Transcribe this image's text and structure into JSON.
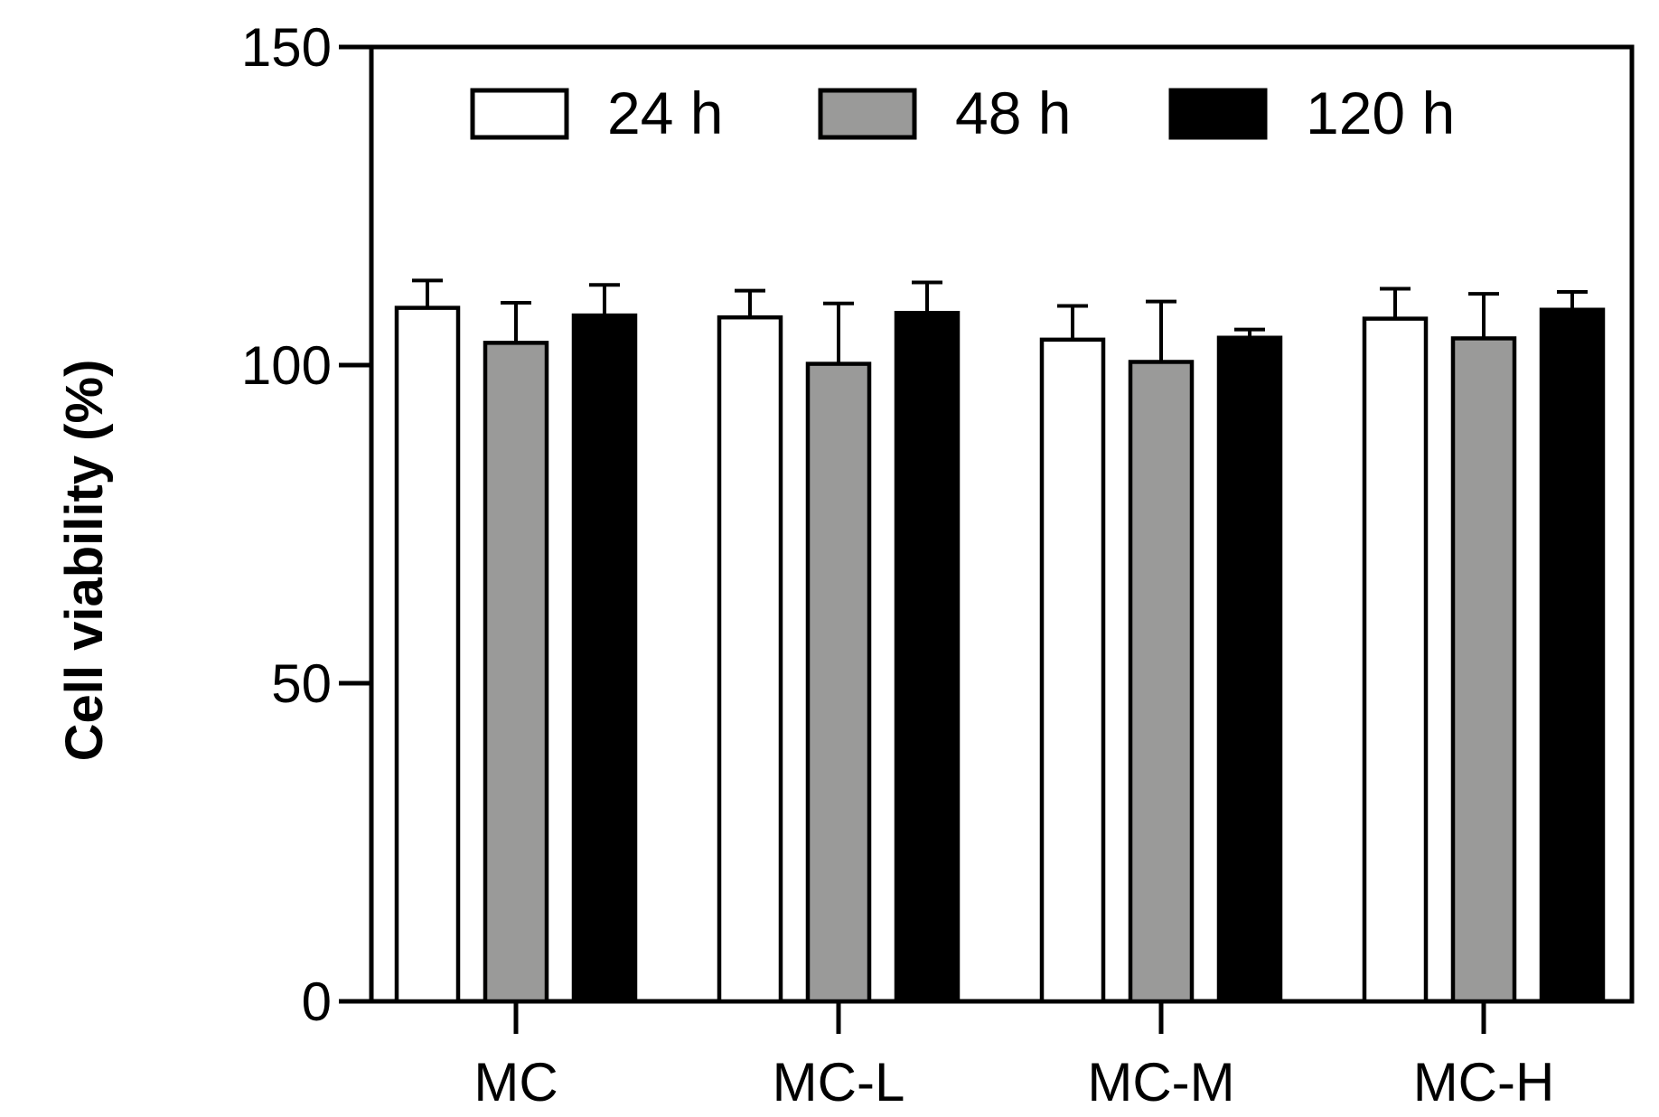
{
  "chart_data": {
    "type": "bar",
    "title": "",
    "xlabel": "",
    "ylabel": "Cell viability (%)",
    "ylim": [
      0,
      150
    ],
    "yticks": [
      0,
      50,
      100,
      150
    ],
    "grid": false,
    "legend_position": "top",
    "categories": [
      "MC",
      "MC-L",
      "MC-M",
      "MC-H"
    ],
    "series": [
      {
        "name": "24 h",
        "color": "#ffffff",
        "values": [
          109,
          107.5,
          104,
          107.3
        ],
        "errors": [
          4.3,
          4.2,
          5.3,
          4.7
        ]
      },
      {
        "name": "48 h",
        "color": "#9a9a99",
        "values": [
          103.5,
          100.2,
          100.5,
          104.2
        ],
        "errors": [
          6.3,
          9.5,
          9.5,
          7
        ]
      },
      {
        "name": "120 h",
        "color": "#000000",
        "values": [
          107.8,
          108.2,
          104.3,
          108.7
        ],
        "errors": [
          4.8,
          4.8,
          1.3,
          2.8
        ]
      }
    ]
  }
}
